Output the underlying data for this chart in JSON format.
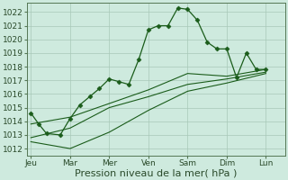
{
  "background_color": "#ceeade",
  "grid_color": "#a8c8b8",
  "line_color": "#1a5c1a",
  "marker_color": "#1a5c1a",
  "xlabel": "Pression niveau de la mer( hPa )",
  "xlabel_fontsize": 8,
  "tick_fontsize": 6.5,
  "ylim": [
    1011.5,
    1022.7
  ],
  "yticks": [
    1012,
    1013,
    1014,
    1015,
    1016,
    1017,
    1018,
    1019,
    1020,
    1021,
    1022
  ],
  "x_labels": [
    "Jeu",
    "Mar",
    "Mer",
    "Ven",
    "Sam",
    "Dim",
    "Lun"
  ],
  "x_positions": [
    0,
    2,
    4,
    6,
    8,
    10,
    12
  ],
  "xlim": [
    -0.2,
    13.0
  ],
  "series1_x": [
    0,
    0.4,
    0.8,
    1.5,
    2.0,
    2.5,
    3.0,
    3.5,
    4.0,
    4.5,
    5.0,
    5.5,
    6.0,
    6.5,
    7.0,
    7.5,
    8.0,
    8.5,
    9.0,
    9.5,
    10.0,
    10.5,
    11.0,
    11.5,
    12.0
  ],
  "series1_y": [
    1014.6,
    1013.8,
    1013.1,
    1013.0,
    1014.2,
    1015.2,
    1015.8,
    1016.4,
    1017.1,
    1016.9,
    1016.7,
    1018.5,
    1020.7,
    1021.0,
    1021.0,
    1022.3,
    1022.2,
    1021.4,
    1019.8,
    1019.3,
    1019.3,
    1017.2,
    1019.0,
    1017.8,
    1017.8
  ],
  "series2_x": [
    0,
    2,
    4,
    6,
    8,
    10,
    12
  ],
  "series2_y": [
    1013.8,
    1014.3,
    1015.3,
    1016.3,
    1017.5,
    1017.3,
    1017.8
  ],
  "series3_x": [
    0,
    2,
    4,
    6,
    8,
    10,
    12
  ],
  "series3_y": [
    1012.5,
    1012.0,
    1013.2,
    1014.8,
    1016.2,
    1016.8,
    1017.5
  ],
  "series4_x": [
    0,
    2,
    4,
    6,
    8,
    10,
    12
  ],
  "series4_y": [
    1012.8,
    1013.5,
    1015.0,
    1015.8,
    1016.7,
    1017.1,
    1017.6
  ]
}
